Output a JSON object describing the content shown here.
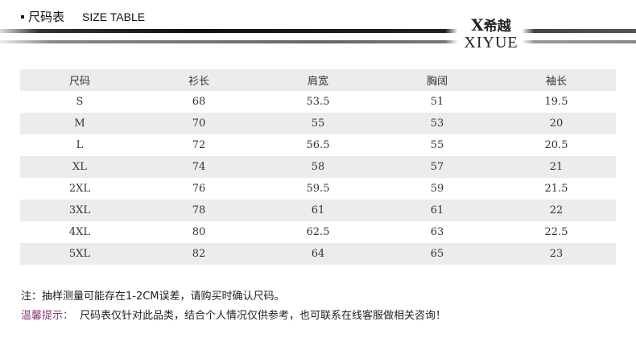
{
  "header": {
    "title_cn": "尺码表",
    "title_en": "SIZE TABLE",
    "logo_cn": "希越",
    "logo_en": "XIYUE"
  },
  "table": {
    "headers": [
      "尺码",
      "衫长",
      "肩宽",
      "胸阔",
      "袖长"
    ],
    "rows": [
      [
        "S",
        "68",
        "53.5",
        "51",
        "19.5"
      ],
      [
        "M",
        "70",
        "55",
        "53",
        "20"
      ],
      [
        "L",
        "72",
        "56.5",
        "55",
        "20.5"
      ],
      [
        "XL",
        "74",
        "58",
        "57",
        "21"
      ],
      [
        "2XL",
        "76",
        "59.5",
        "59",
        "21.5"
      ],
      [
        "3XL",
        "78",
        "61",
        "61",
        "22"
      ],
      [
        "4XL",
        "80",
        "62.5",
        "63",
        "22.5"
      ],
      [
        "5XL",
        "82",
        "64",
        "65",
        "23"
      ]
    ]
  },
  "notes": {
    "note": "注：抽样测量可能存在1-2CM误差，请购买时确认尺码。",
    "tip_label": "温馨提示：",
    "tip": "尺码表仅针对此品类，结合个人情况仅供参考，也可联系在线客服做相关咨询！"
  },
  "colors": {
    "tip_label": "#8a3d78",
    "row_alt": "#ececec"
  }
}
